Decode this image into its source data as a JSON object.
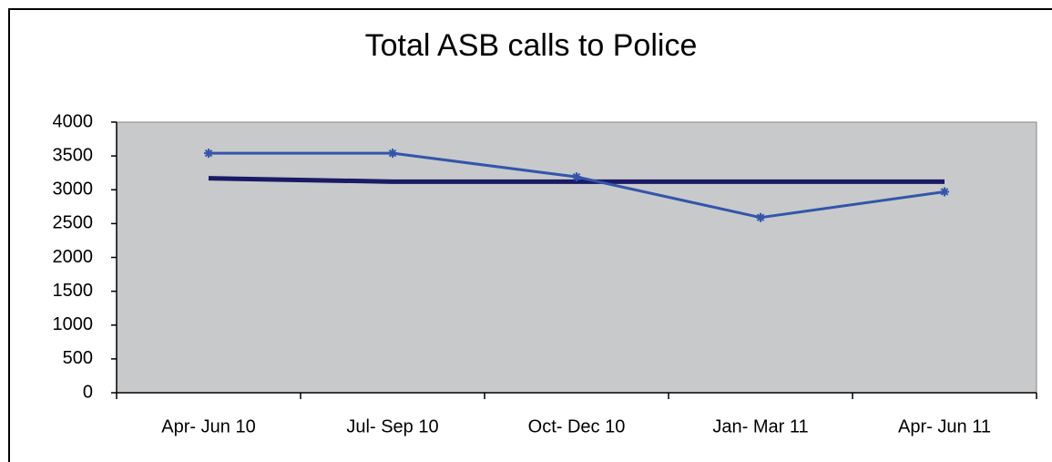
{
  "chart_data": {
    "type": "line",
    "title": "Total ASB calls to Police",
    "categories": [
      "Apr- Jun 10",
      "Jul- Sep 10",
      "Oct- Dec 10",
      "Jan- Mar 11",
      "Apr- Jun 11"
    ],
    "series": [
      {
        "color": "#3355aa",
        "values": [
          3540,
          3540,
          3190,
          2590,
          2970
        ]
      },
      {
        "color": "#1a1a66",
        "values": [
          3170,
          3120,
          3120,
          3120,
          3120
        ]
      }
    ],
    "ylim": [
      0,
      4000
    ],
    "yticks": [
      0,
      500,
      1000,
      1500,
      2000,
      2500,
      3000,
      3500,
      4000
    ],
    "grid": false
  }
}
